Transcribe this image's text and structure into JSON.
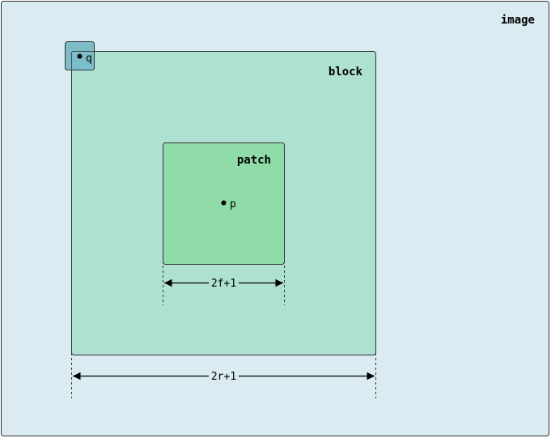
{
  "colors": {
    "image_fill": "#daebf2",
    "block_fill": "#afe1d2",
    "patch_fill": "#8fdca8",
    "q_box_fill": "#7cbdc8",
    "stroke": "#333333"
  },
  "labels": {
    "image": "image",
    "block": "block",
    "patch": "patch",
    "p": "p",
    "q": "q"
  },
  "dimensions": {
    "patch_width": "2f+1",
    "block_width": "2r+1"
  }
}
